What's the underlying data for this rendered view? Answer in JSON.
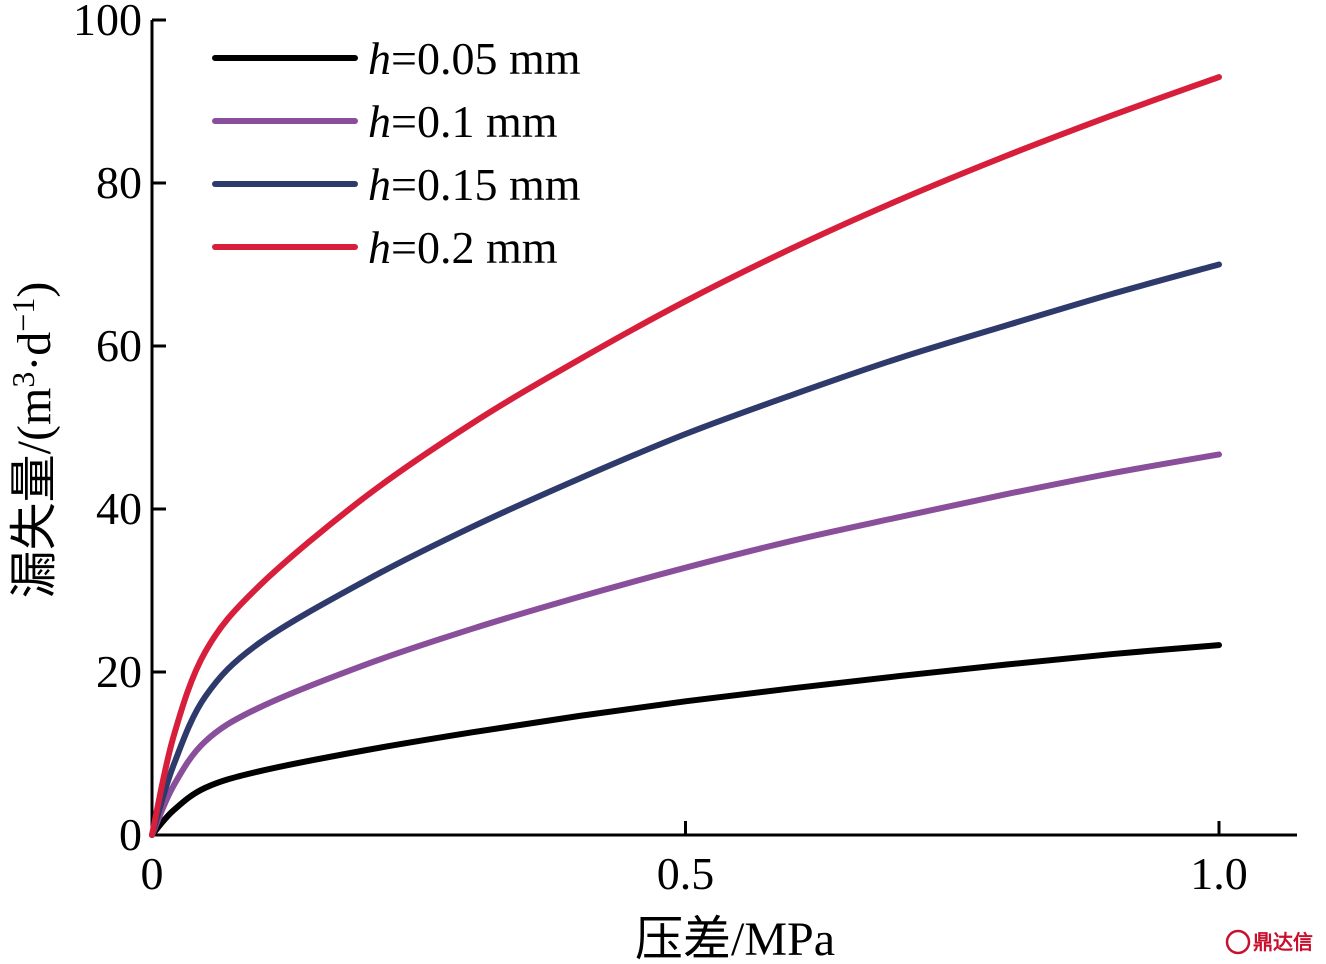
{
  "chart_data": {
    "type": "line",
    "xlabel": "压差/MPa",
    "ylabel_main": "漏失量/(m",
    "ylabel_sup1": "3",
    "ylabel_mid": "·d",
    "ylabel_sup2": "−1",
    "ylabel_end": ")",
    "xlim": [
      0,
      1.1
    ],
    "ylim": [
      0,
      100
    ],
    "xticks": [
      0,
      0.5,
      1.0
    ],
    "xtick_labels": [
      "0",
      "0.5",
      "1.0"
    ],
    "yticks": [
      0,
      20,
      40,
      60,
      80,
      100
    ],
    "ytick_labels": [
      "0",
      "20",
      "40",
      "60",
      "80",
      "100"
    ],
    "legend_position": "top-left",
    "series": [
      {
        "name": "h=0.05 mm",
        "name_italic": "h",
        "name_rest": "=0.05 mm",
        "color": "#000000",
        "x": [
          0,
          0.02,
          0.05,
          0.1,
          0.2,
          0.3,
          0.4,
          0.5,
          0.6,
          0.7,
          0.8,
          0.9,
          1.0
        ],
        "y": [
          0,
          3,
          5.8,
          7.8,
          10.4,
          12.6,
          14.6,
          16.4,
          18.0,
          19.5,
          20.9,
          22.2,
          23.3
        ]
      },
      {
        "name": "h=0.1 mm",
        "name_italic": "h",
        "name_rest": "=0.1 mm",
        "color": "#8a4f9b",
        "x": [
          0,
          0.02,
          0.05,
          0.1,
          0.2,
          0.3,
          0.4,
          0.5,
          0.6,
          0.7,
          0.8,
          0.9,
          1.0
        ],
        "y": [
          0,
          6,
          11.5,
          15.6,
          20.9,
          25.3,
          29.2,
          32.8,
          36.1,
          39.0,
          41.8,
          44.4,
          46.7
        ]
      },
      {
        "name": "h=0.15 mm",
        "name_italic": "h",
        "name_rest": "=0.15 mm",
        "color": "#2e3a6b",
        "x": [
          0,
          0.02,
          0.05,
          0.1,
          0.2,
          0.3,
          0.4,
          0.5,
          0.6,
          0.7,
          0.8,
          0.9,
          1.0
        ],
        "y": [
          0,
          8.5,
          17.0,
          23.5,
          31.2,
          37.8,
          43.7,
          49.2,
          54.0,
          58.5,
          62.5,
          66.4,
          70.0
        ]
      },
      {
        "name": "h=0.2 mm",
        "name_italic": "h",
        "name_rest": "=0.2 mm",
        "color": "#d71f3c",
        "x": [
          0,
          0.02,
          0.05,
          0.1,
          0.2,
          0.3,
          0.4,
          0.5,
          0.6,
          0.7,
          0.8,
          0.9,
          1.0
        ],
        "y": [
          0,
          12,
          22.5,
          30.5,
          41.5,
          50.5,
          58.3,
          65.5,
          72.0,
          77.9,
          83.3,
          88.3,
          93.0
        ]
      }
    ]
  },
  "watermark": {
    "text": "鼎达信",
    "color": "#c8102e"
  }
}
